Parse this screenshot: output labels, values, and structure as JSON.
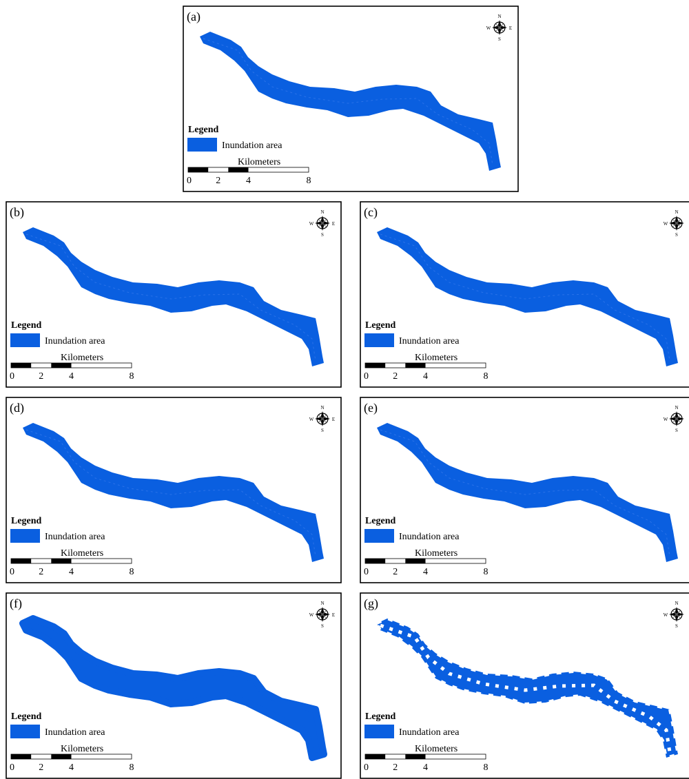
{
  "panels": [
    {
      "label": "(a)",
      "legend_title": "Legend",
      "legend_item": "Inundation area",
      "scale_unit": "Kilometers",
      "scale_ticks": [
        0,
        2,
        4,
        8
      ],
      "compass": {
        "n": "N",
        "s": "S",
        "w": "W",
        "e": "E"
      }
    },
    {
      "label": "(b)",
      "legend_title": "Legend",
      "legend_item": "Inundation area",
      "scale_unit": "Kilometers",
      "scale_ticks": [
        0,
        2,
        4,
        8
      ],
      "compass": {
        "n": "N",
        "s": "S",
        "w": "W",
        "e": "E"
      }
    },
    {
      "label": "(c)",
      "legend_title": "Legend",
      "legend_item": "Inundation area",
      "scale_unit": "Kilometers",
      "scale_ticks": [
        0,
        2,
        4,
        8
      ],
      "compass": {
        "n": "N",
        "s": "S",
        "w": "W"
      }
    },
    {
      "label": "(d)",
      "legend_title": "Legend",
      "legend_item": "Inundation area",
      "scale_unit": "Kilometers",
      "scale_ticks": [
        0,
        2,
        4,
        8
      ],
      "compass": {
        "n": "N",
        "s": "S",
        "w": "W",
        "e": "E"
      }
    },
    {
      "label": "(e)",
      "legend_title": "Legend",
      "legend_item": "Inundation area",
      "scale_unit": "Kilometers",
      "scale_ticks": [
        0,
        2,
        4,
        8
      ],
      "compass": {
        "n": "N",
        "s": "S",
        "w": "W"
      }
    },
    {
      "label": "(f)",
      "legend_title": "Legend",
      "legend_item": "Inundation area",
      "scale_unit": "Kilometers",
      "scale_ticks": [
        0,
        2,
        4,
        8
      ],
      "compass": {
        "n": "N",
        "s": "S",
        "w": "W",
        "e": "E"
      }
    },
    {
      "label": "(g)",
      "legend_title": "Legend",
      "legend_item": "Inundation area",
      "scale_unit": "Kilometers",
      "scale_ticks": [
        0,
        2,
        4,
        8
      ],
      "compass": {
        "n": "N",
        "s": "S",
        "w": "W"
      }
    }
  ]
}
